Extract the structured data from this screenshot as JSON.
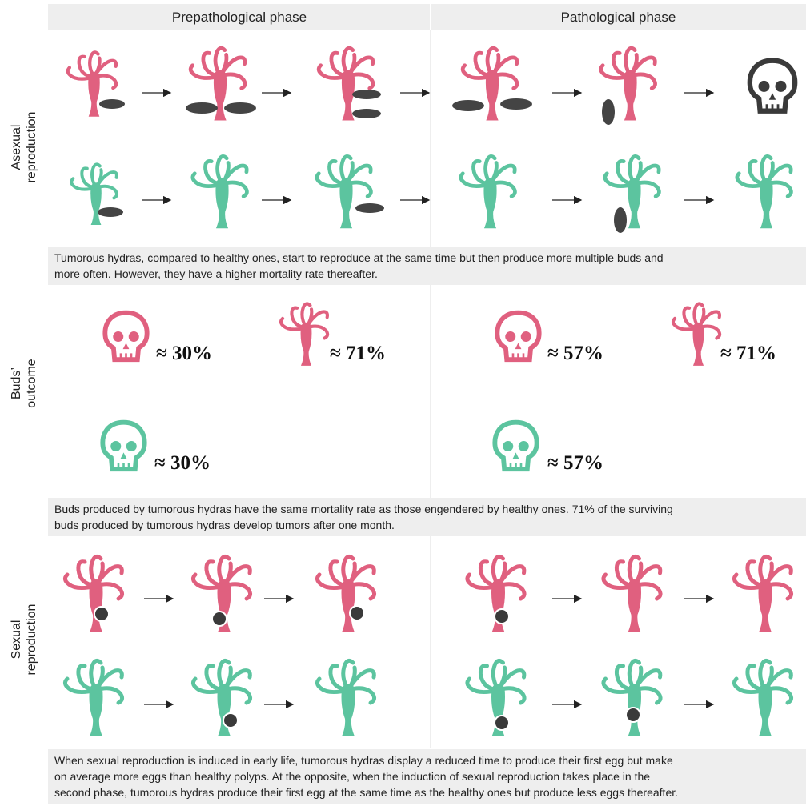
{
  "header": {
    "phases": [
      "Prepathological phase",
      "Pathological phase"
    ]
  },
  "row_labels": [
    [
      "Asexual",
      "reproduction"
    ],
    [
      "Buds’",
      "outcome"
    ],
    [
      "Sexual",
      "reproduction"
    ]
  ],
  "captions": [
    [
      "Tumorous hydras, compared to healthy ones, start to reproduce at the same time but then produce more multiple buds and",
      "more often. However, they have a higher mortality rate thereafter."
    ],
    [
      "Buds produced by tumorous hydras have the same mortality rate as those engendered by healthy ones. 71% of the surviving",
      "buds produced by tumorous hydras develop tumors after one month."
    ],
    [
      "When sexual reproduction is induced in early life, tumorous hydras display a reduced time to produce their first egg but make",
      "on average more eggs than healthy polyps. At the opposite, when the induction of sexual reproduction takes place in the",
      "second phase, tumorous hydras produce their first egg at the same time as the healthy ones but produce less eggs thereafter."
    ]
  ],
  "buds_outcome": {
    "prepathological": {
      "tumorous_mortality": "≈ 30%",
      "tumor_development": "≈ 71%",
      "healthy_mortality": "≈ 30%"
    },
    "pathological": {
      "tumorous_mortality": "≈ 57%",
      "tumor_development": "≈ 71%",
      "healthy_mortality": "≈ 57%"
    }
  }
}
